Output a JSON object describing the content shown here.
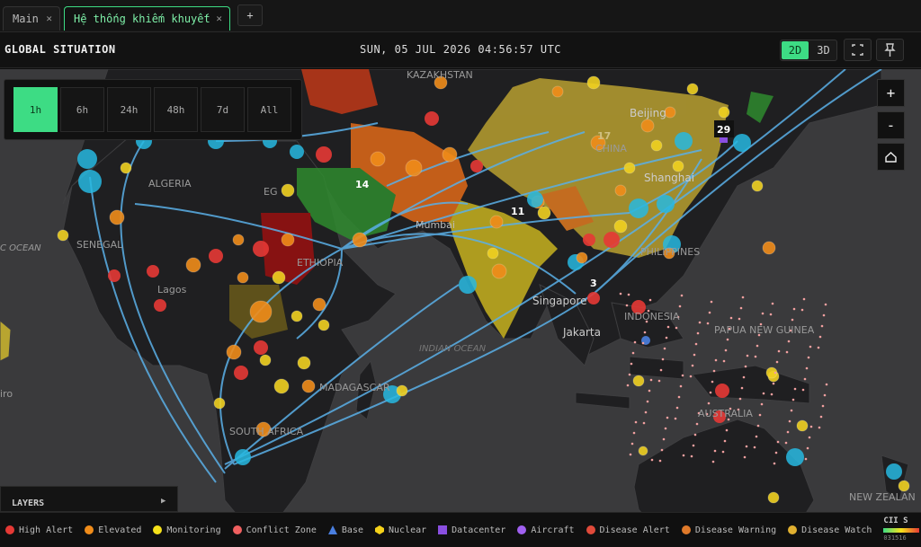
{
  "tabs": [
    {
      "label": "Main"
    },
    {
      "label": "Hệ thống khiếm khuyết"
    }
  ],
  "new_tab": "+",
  "header": {
    "title": "GLOBAL SITUATION",
    "datetime": "SUN, 05 JUL 2026 04:56:57 UTC",
    "view_modes": [
      "2D",
      "3D"
    ]
  },
  "time_filters": [
    "1h",
    "6h",
    "24h",
    "48h",
    "7d",
    "All"
  ],
  "zoom_controls": [
    "+",
    "-"
  ],
  "map": {
    "labels": [
      "KAZAKHSTAN",
      "ALGERIA",
      "EG",
      "C OCEAN",
      "SENEGAL",
      "Lagos",
      "ETHIOPIA",
      "Mumbai",
      "Beijing",
      "CHINA",
      "Shanghai",
      "PHILIPPINES",
      "Singapore",
      "INDONESIA",
      "Jakarta",
      "PAPUA NEW GUINEA",
      "INDIAN OCEAN",
      "MADAGASCAR",
      "AUSTRALIA",
      "SOUTH AFRICA",
      "NEW ZEALAN",
      "iro"
    ],
    "clusters": [
      "29",
      "14",
      "11",
      "3",
      "17"
    ]
  },
  "layers_panel": {
    "title": "LAYERS"
  },
  "legend": [
    "High Alert",
    "Elevated",
    "Monitoring",
    "Conflict Zone",
    "Base",
    "Nuclear",
    "Datacenter",
    "Aircraft",
    "Disease Alert",
    "Disease Warning",
    "Disease Watch"
  ],
  "cii": {
    "title": "CII S",
    "scale": "031516"
  }
}
